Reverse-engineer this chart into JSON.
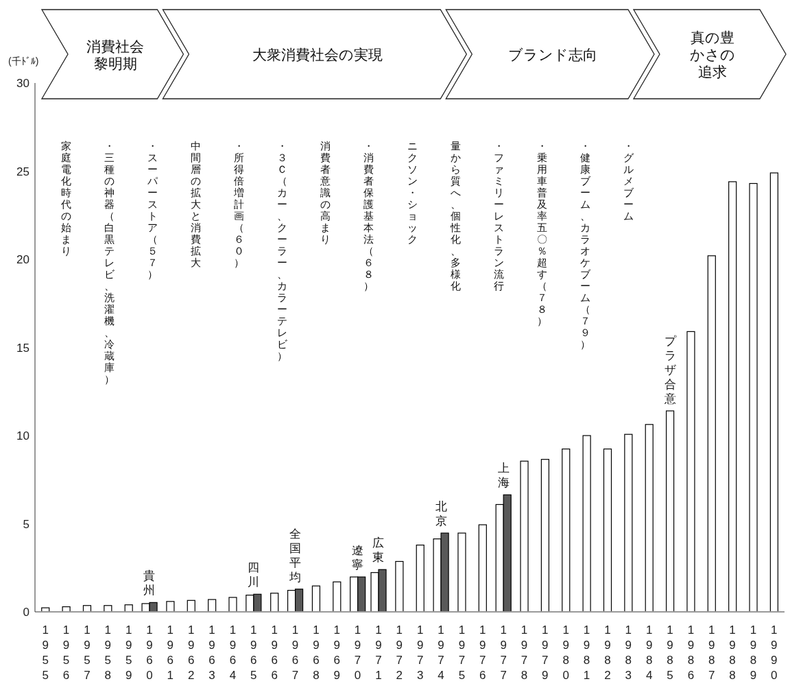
{
  "chart_data": {
    "type": "bar",
    "ylabel": "(千ﾄﾞﾙ)",
    "categories": [
      "1955",
      "1956",
      "1957",
      "1958",
      "1959",
      "1960",
      "1961",
      "1962",
      "1963",
      "1964",
      "1965",
      "1966",
      "1967",
      "1968",
      "1969",
      "1970",
      "1971",
      "1972",
      "1973",
      "1974",
      "1975",
      "1976",
      "1977",
      "1978",
      "1979",
      "1980",
      "1981",
      "1982",
      "1983",
      "1984",
      "1985",
      "1986",
      "1987",
      "1988",
      "1989",
      "1990"
    ],
    "series": [
      {
        "color": "#ffffff",
        "values": [
          0.23,
          0.29,
          0.36,
          0.36,
          0.4,
          0.47,
          0.59,
          0.65,
          0.7,
          0.82,
          0.95,
          1.06,
          1.22,
          1.47,
          1.7,
          1.98,
          2.23,
          2.86,
          3.79,
          4.14,
          4.47,
          4.94,
          6.09,
          8.55,
          8.65,
          9.24,
          10.0,
          9.24,
          10.07,
          10.63,
          11.4,
          15.9,
          20.2,
          24.4,
          24.3,
          24.9
        ]
      },
      {
        "color": "#595959",
        "values": [
          null,
          null,
          null,
          null,
          null,
          0.53,
          null,
          null,
          null,
          null,
          1.0,
          null,
          1.29,
          null,
          null,
          1.98,
          2.4,
          null,
          null,
          4.47,
          null,
          null,
          6.64,
          null,
          null,
          null,
          null,
          null,
          null,
          null,
          null,
          null,
          null,
          null,
          null,
          null
        ]
      }
    ],
    "ylim": [
      0,
      30
    ],
    "yticks": [
      0,
      5,
      10,
      15,
      20,
      25,
      30
    ],
    "annotations": [
      "消費社会黎明期",
      "大衆消費社会の実現",
      "ブランド志向",
      "真の豊かさの追求",
      "家庭電化時代の始まり",
      "・三種の神器（白黒テレビ、洗濯機、冷蔵庫）",
      "・スーパーストア（５７）",
      "中間層の拡大と消費拡大",
      "・所得倍増計画（６０）",
      "・３Ｃ（カー、クーラー、カラーテレビ）",
      "消費者意識の高まり",
      "・消費者保護基本法（６８）",
      "ニクソン・ショック",
      "量から質へ、個性化、多様化",
      "・ファミリーレストラン流行",
      "・乗用車普及率五〇％超す（７８）",
      "・健康ブーム、カラオケブーム（７９）",
      "・グルメブーム",
      {
        "text": "プラザ合意",
        "x": "1985",
        "y": 11.4
      },
      {
        "text": "貴州",
        "x": "1960",
        "y": 0.53
      },
      {
        "text": "四川",
        "x": "1965",
        "y": 1.0
      },
      {
        "text": "全国平均",
        "x": "1967",
        "y": 1.29
      },
      {
        "text": "遼寧",
        "x": "1970",
        "y": 1.98
      },
      {
        "text": "広東",
        "x": "1971",
        "y": 2.4
      },
      {
        "text": "北京",
        "x": "1974",
        "y": 4.47
      },
      {
        "text": "上海",
        "x": "1977",
        "y": 6.64
      }
    ]
  }
}
